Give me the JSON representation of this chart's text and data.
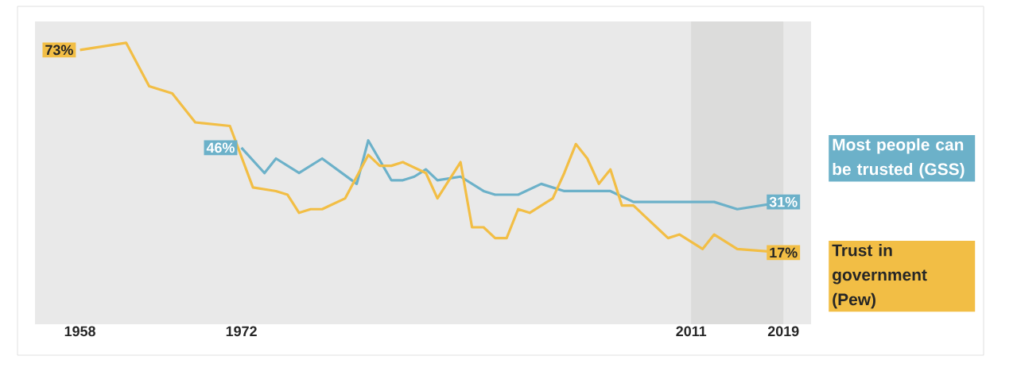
{
  "chart_data": {
    "type": "line",
    "xlim": [
      1954.1,
      2021.4
    ],
    "ylim": [
      -2.8,
      80.9
    ],
    "xticks": [
      1958,
      1972,
      2011,
      2019
    ],
    "tick_labels": "x",
    "grid": false,
    "legend": "right",
    "bands": [
      {
        "axis": "x",
        "from": 2011,
        "to": 2019,
        "color": "#dcdcdb"
      }
    ],
    "series": [
      {
        "name": "Most people can be trusted (GSS)",
        "color": "#6cb1c9",
        "x": [
          1972,
          1974,
          1975,
          1977,
          1979,
          1982,
          1983,
          1985,
          1986,
          1987,
          1988,
          1989,
          1991,
          1993,
          1994,
          1996,
          1998,
          2000,
          2004,
          2006,
          2013,
          2015,
          2019
        ],
        "values": [
          46,
          39,
          43,
          39,
          43,
          36,
          48,
          37,
          37,
          38,
          40,
          37,
          38,
          34,
          33,
          33,
          36,
          34,
          34,
          31,
          31,
          29,
          31
        ],
        "value_labels": [
          "46%",
          null,
          null,
          null,
          null,
          null,
          null,
          null,
          null,
          null,
          null,
          null,
          null,
          null,
          null,
          null,
          null,
          null,
          null,
          null,
          null,
          null,
          "31%"
        ]
      },
      {
        "name": "Trust in government (Pew)",
        "color": "#f2be45",
        "x": [
          1958,
          1962,
          1964,
          1966,
          1968,
          1971,
          1973,
          1975,
          1976,
          1977,
          1978,
          1979,
          1981,
          1983,
          1984,
          1985,
          1986,
          1988,
          1989,
          1991,
          1992,
          1993,
          1994,
          1995,
          1996,
          1997,
          1999,
          2000,
          2001,
          2002,
          2003,
          2004,
          2005,
          2006,
          2007,
          2008,
          2009,
          2010,
          2012,
          2013,
          2015,
          2019
        ],
        "values": [
          73,
          75,
          63,
          61,
          53,
          52,
          35,
          34,
          33,
          28,
          29,
          29,
          32,
          44,
          41,
          41,
          42,
          39,
          32,
          42,
          24,
          24,
          21,
          21,
          29,
          28,
          32,
          39,
          47,
          43,
          36,
          40,
          30,
          30,
          27,
          24,
          21,
          22,
          18,
          22,
          18,
          17
        ],
        "value_labels": [
          "73%",
          null,
          null,
          null,
          null,
          null,
          null,
          null,
          null,
          null,
          null,
          null,
          null,
          null,
          null,
          null,
          null,
          null,
          null,
          null,
          null,
          null,
          null,
          null,
          null,
          null,
          null,
          null,
          null,
          null,
          null,
          null,
          null,
          null,
          null,
          null,
          null,
          null,
          null,
          null,
          null,
          "17%"
        ]
      }
    ]
  }
}
